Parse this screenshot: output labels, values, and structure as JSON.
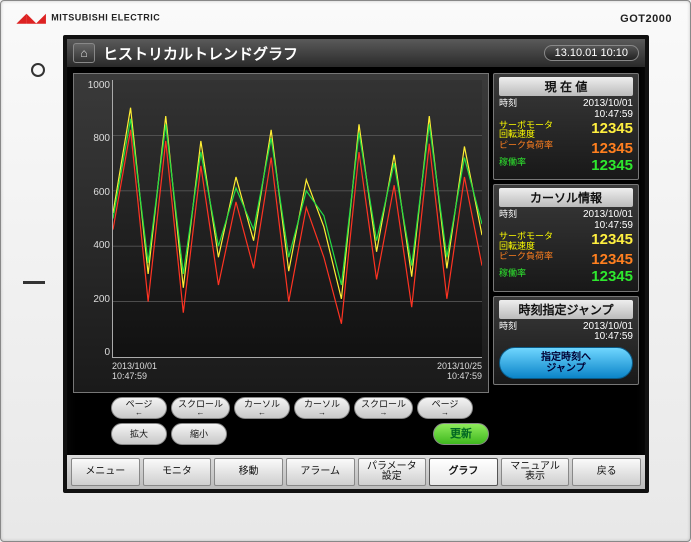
{
  "device": {
    "brand": "MITSUBISHI ELECTRIC",
    "model_prefix": "GOT",
    "model_bold": "2000"
  },
  "header": {
    "title": "ヒストリカルトレンドグラフ",
    "clock": "13.10.01  10:10"
  },
  "chart": {
    "type": "line",
    "ylim": [
      0,
      1000
    ],
    "ytick_step": 200,
    "yticks": [
      "1000",
      "800",
      "600",
      "400",
      "200",
      "0"
    ],
    "x_start": {
      "date": "2013/10/01",
      "time": "10:47:59"
    },
    "x_end": {
      "date": "2013/10/25",
      "time": "10:47:59"
    },
    "background_color": "#222222",
    "grid_color": "#555555",
    "axis_color": "#aaaaaa",
    "label_color": "#dddddd",
    "label_fontsize": 10,
    "line_width": 1.2,
    "n_points": 22,
    "series": [
      {
        "name": "servo_motor_speed",
        "color": "#ffee33",
        "values": [
          520,
          900,
          300,
          870,
          250,
          780,
          360,
          650,
          420,
          820,
          310,
          640,
          470,
          210,
          840,
          380,
          730,
          290,
          870,
          320,
          760,
          440
        ]
      },
      {
        "name": "peak_load_rate",
        "color": "#ff3322",
        "values": [
          460,
          820,
          200,
          780,
          160,
          690,
          260,
          560,
          320,
          720,
          200,
          540,
          360,
          120,
          740,
          280,
          620,
          180,
          770,
          210,
          650,
          330
        ]
      },
      {
        "name": "running_rate",
        "color": "#22dd44",
        "values": [
          500,
          860,
          340,
          840,
          300,
          740,
          400,
          610,
          460,
          790,
          360,
          600,
          510,
          260,
          810,
          420,
          700,
          330,
          840,
          360,
          720,
          480
        ]
      }
    ]
  },
  "controls": {
    "row1": [
      {
        "t1": "ページ",
        "t2": "←"
      },
      {
        "t1": "スクロール",
        "t2": "←"
      },
      {
        "t1": "カーソル",
        "t2": "←"
      },
      {
        "t1": "カーソル",
        "t2": "→"
      },
      {
        "t1": "スクロール",
        "t2": "→"
      },
      {
        "t1": "ページ",
        "t2": "→"
      }
    ],
    "row2": [
      {
        "t1": "拡大"
      },
      {
        "t1": "縮小"
      }
    ],
    "update": "更新"
  },
  "panels": {
    "current": {
      "title": "現 在 値",
      "time_label": "時刻",
      "time_value": {
        "date": "2013/10/01",
        "time": "10:47:59"
      },
      "rows": [
        {
          "label": "サーボモータ\n回転速度",
          "label_color": "y",
          "value": "12345",
          "value_color": "y"
        },
        {
          "label": "ピーク負荷率",
          "label_color": "o",
          "value": "12345",
          "value_color": "o"
        },
        {
          "label": "稼働率",
          "label_color": "g",
          "value": "12345",
          "value_color": "g"
        }
      ]
    },
    "cursor": {
      "title": "カーソル情報",
      "time_label": "時刻",
      "time_value": {
        "date": "2013/10/01",
        "time": "10:47:59"
      },
      "rows": [
        {
          "label": "サーボモータ\n回転速度",
          "label_color": "y",
          "value": "12345",
          "value_color": "y"
        },
        {
          "label": "ピーク負荷率",
          "label_color": "o",
          "value": "12345",
          "value_color": "o"
        },
        {
          "label": "稼働率",
          "label_color": "g",
          "value": "12345",
          "value_color": "g"
        }
      ]
    },
    "jump": {
      "title": "時刻指定ジャンプ",
      "time_label": "時刻",
      "time_value": {
        "date": "2013/10/01",
        "time": "10:47:59"
      },
      "button": "指定時刻へ\nジャンプ"
    }
  },
  "tabs": [
    "メニュー",
    "モニタ",
    "移動",
    "アラーム",
    "パラメータ\n設定",
    "グラフ",
    "マニュアル\n表示",
    "戻る"
  ],
  "active_tab": 5
}
